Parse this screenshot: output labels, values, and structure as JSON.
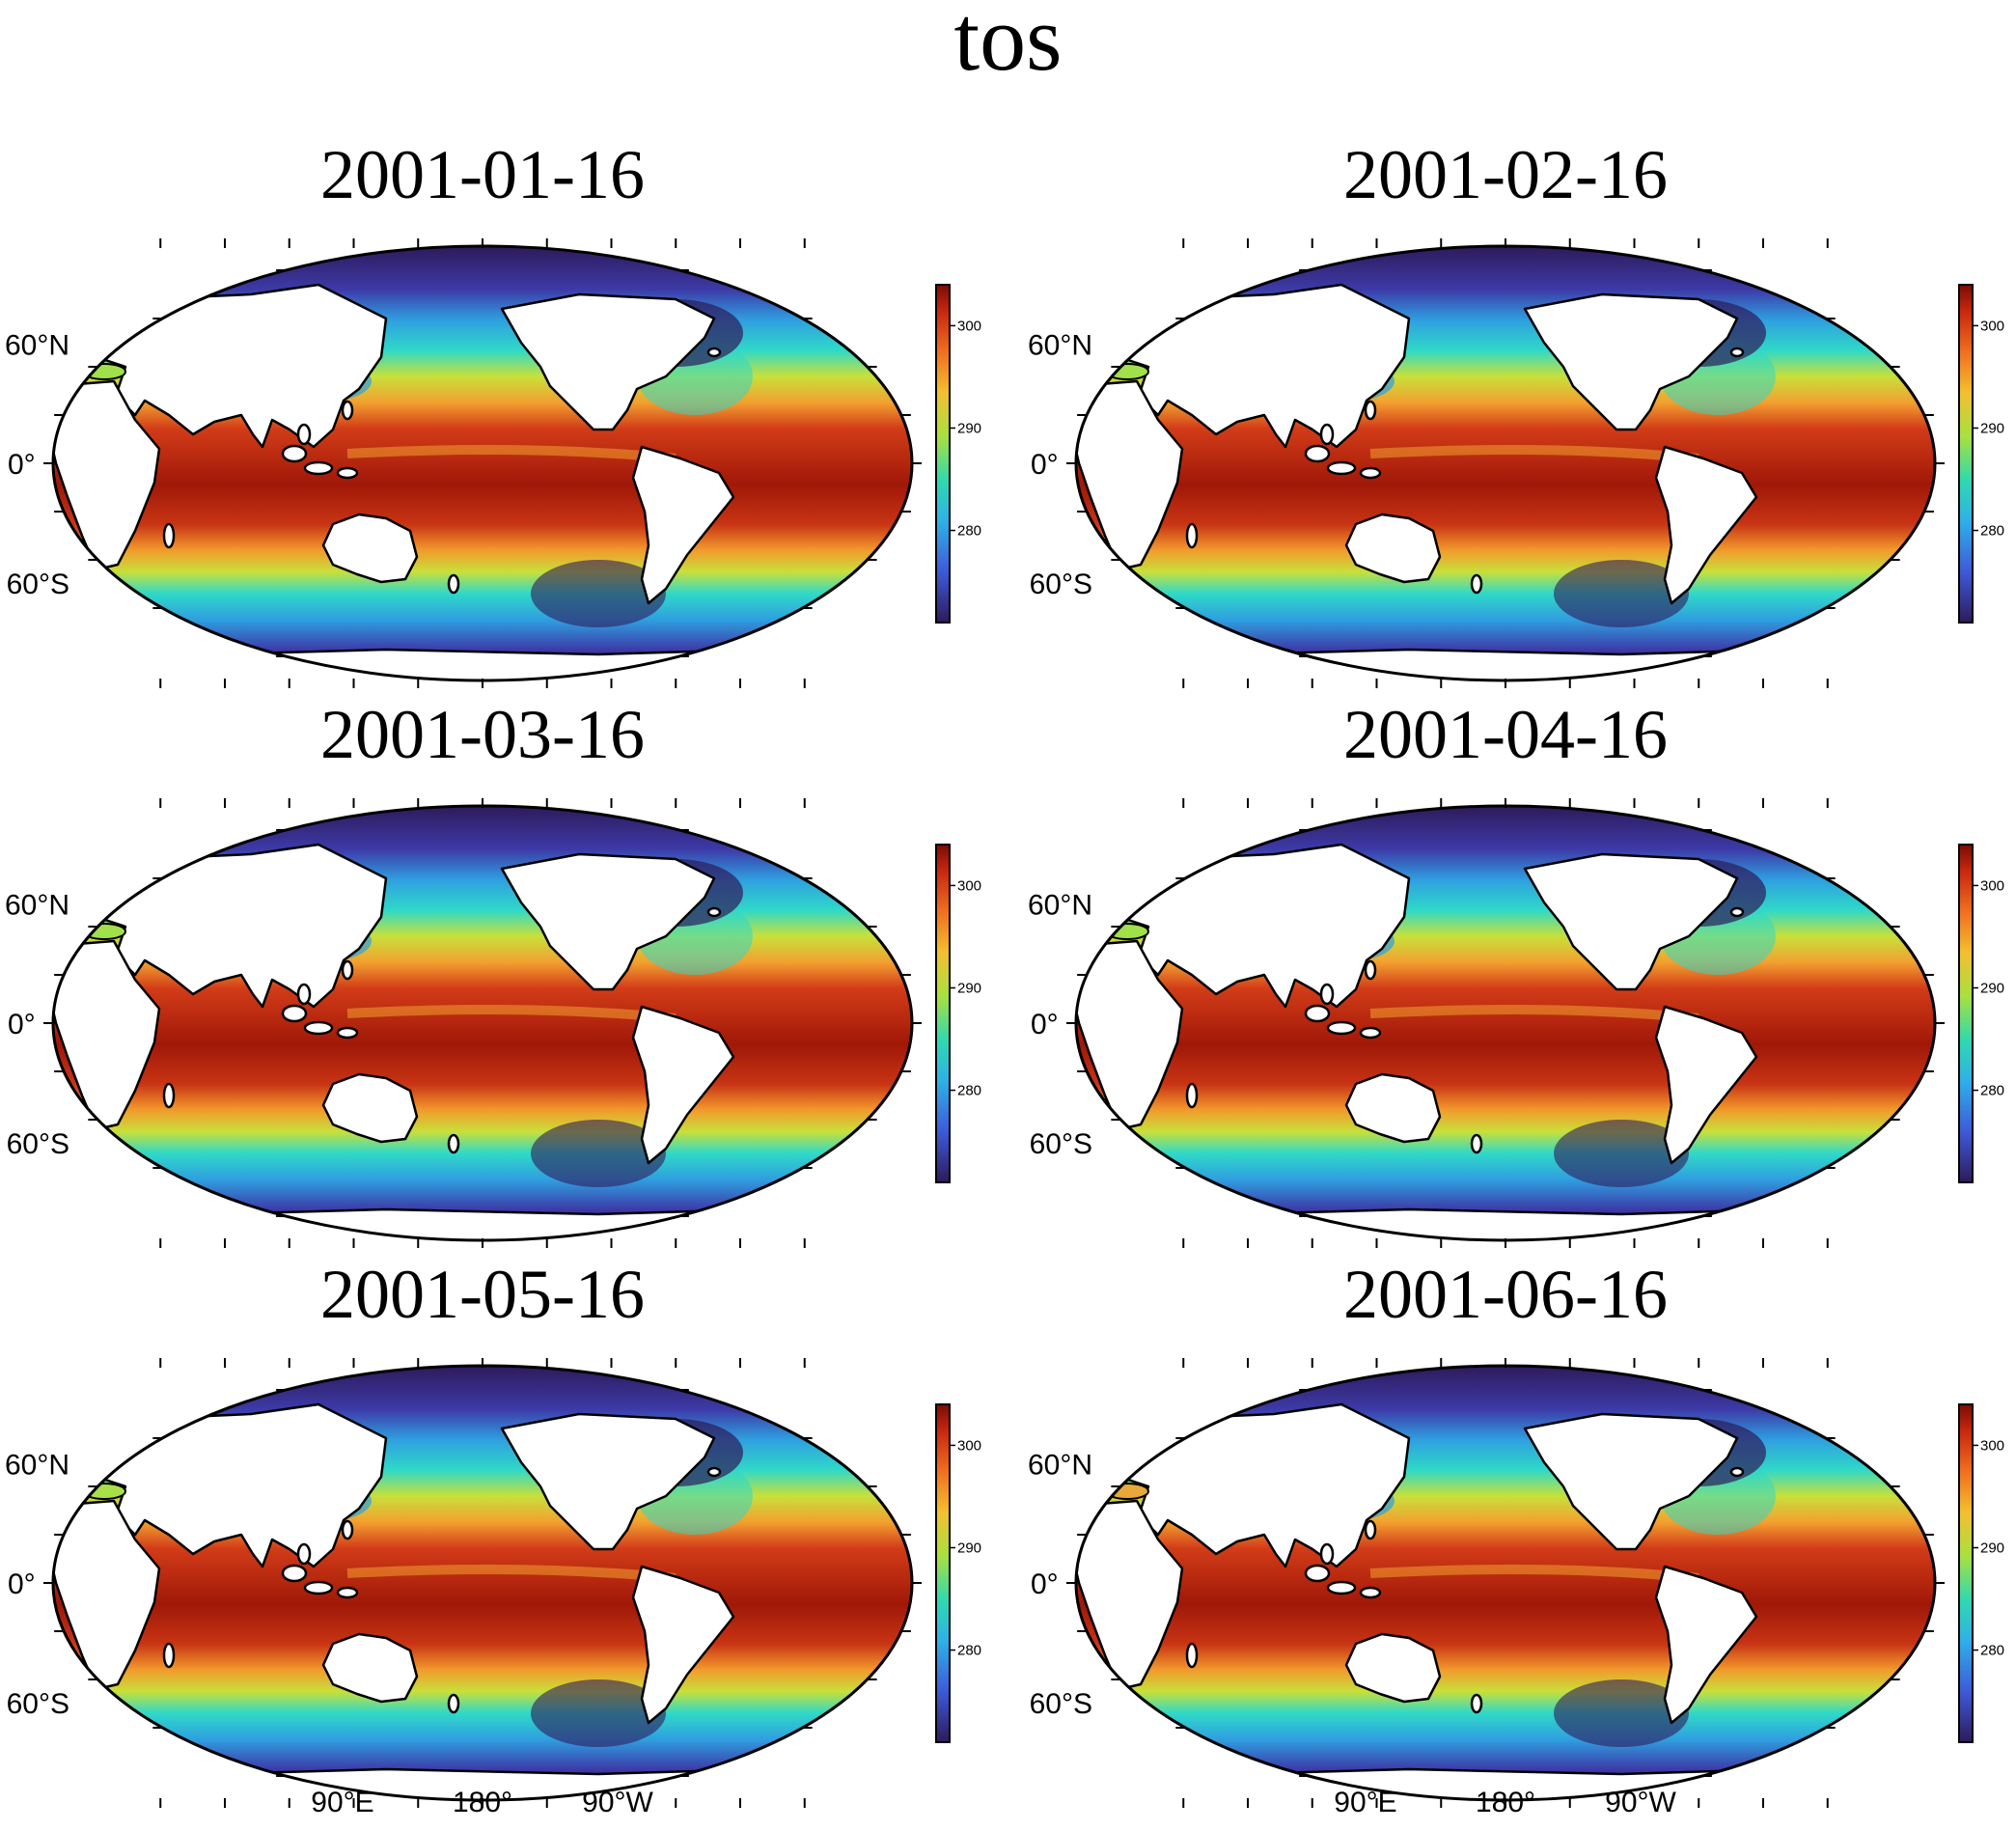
{
  "title": "tos",
  "colorbar": {
    "ticks": [
      280,
      290,
      300
    ],
    "min": 271,
    "max": 304
  },
  "lat_labels": [
    "60°N",
    "0°",
    "60°S"
  ],
  "lon_labels": [
    "90°E",
    "180°",
    "90°W"
  ],
  "panels": [
    {
      "date": "2001-01-16",
      "gulf": "#a0e04a"
    },
    {
      "date": "2001-02-16",
      "gulf": "#a0e04a"
    },
    {
      "date": "2001-03-16",
      "gulf": "#a0e04a"
    },
    {
      "date": "2001-04-16",
      "gulf": "#a0e04a"
    },
    {
      "date": "2001-05-16",
      "gulf": "#a8e04a"
    },
    {
      "date": "2001-06-16",
      "gulf": "#e8a83a"
    }
  ]
}
